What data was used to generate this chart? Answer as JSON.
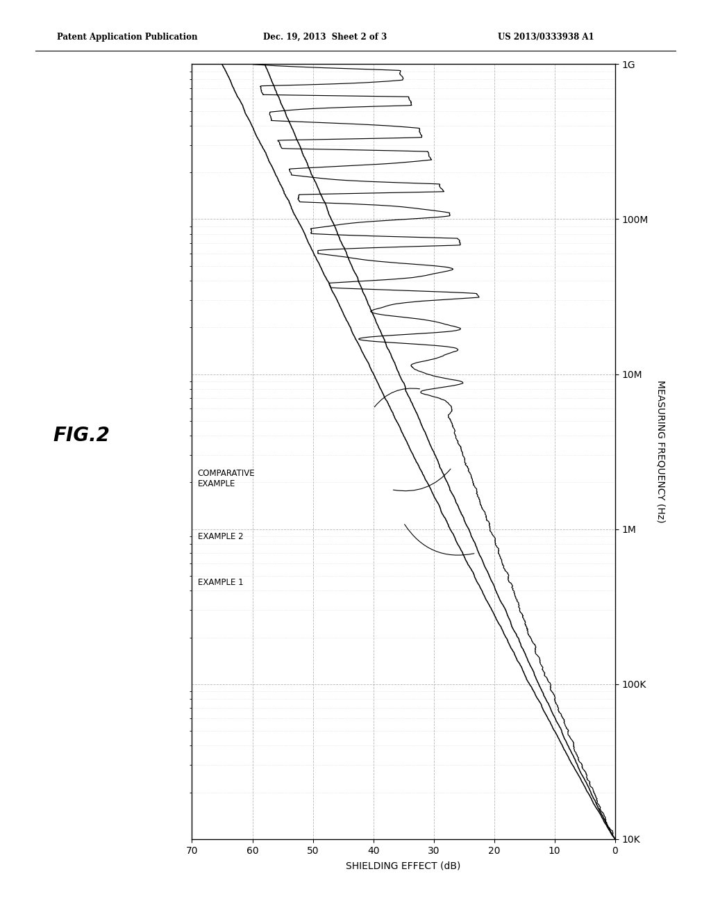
{
  "header_left": "Patent Application Publication",
  "header_center": "Dec. 19, 2013  Sheet 2 of 3",
  "header_right": "US 2013/0333938 A1",
  "title": "FIG.2",
  "xlabel_bottom": "SHIELDING EFFECT (dB)",
  "ylabel_right": "MEASURING FREQUENCY (Hz)",
  "xmin": 0,
  "xmax": 70,
  "ymin_log": 4,
  "ymax_log": 9,
  "ytick_vals": [
    10000,
    100000,
    1000000,
    10000000,
    100000000,
    1000000000
  ],
  "ytick_labels": [
    "10K",
    "100K",
    "1M",
    "10M",
    "100M",
    "1G"
  ],
  "xtick_vals": [
    0,
    10,
    20,
    30,
    40,
    50,
    60,
    70
  ],
  "background_color": "#ffffff",
  "grid_major_color": "#aaaaaa",
  "grid_minor_color": "#cccccc",
  "line_color": "#000000",
  "label_ex1": "EXAMPLE 1",
  "label_ex2": "EXAMPLE 2",
  "label_comp": "COMPARATIVE\nEXAMPLE"
}
